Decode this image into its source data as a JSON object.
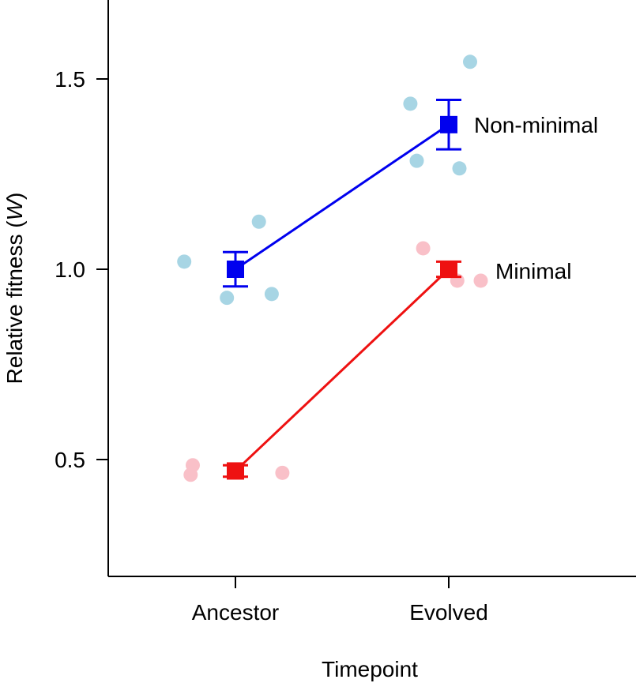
{
  "chart_data": {
    "type": "scatter",
    "xlabel": "Timepoint",
    "ylabel_prefix": "Relative fitness (",
    "ylabel_var": "W",
    "ylabel_suffix": ")",
    "categories": [
      "Ancestor",
      "Evolved"
    ],
    "ylim": [
      0.2,
      1.7
    ],
    "yticks": [
      0.5,
      1.0,
      1.5
    ],
    "ytick_labels": [
      "0.5",
      "1.0",
      "1.5"
    ],
    "grid": false,
    "series": [
      {
        "name": "Non-minimal",
        "color": "#0000ee",
        "point_color": "#a7d5e4",
        "mean": [
          1.0,
          1.38
        ],
        "error": [
          0.045,
          0.065
        ],
        "points": [
          {
            "cat": 0,
            "offset": -0.24,
            "y": 1.02
          },
          {
            "cat": 0,
            "offset": -0.04,
            "y": 0.925
          },
          {
            "cat": 0,
            "offset": 0.11,
            "y": 1.125
          },
          {
            "cat": 0,
            "offset": 0.17,
            "y": 0.935
          },
          {
            "cat": 1,
            "offset": -0.18,
            "y": 1.435
          },
          {
            "cat": 1,
            "offset": -0.15,
            "y": 1.285
          },
          {
            "cat": 1,
            "offset": 0.05,
            "y": 1.265
          },
          {
            "cat": 1,
            "offset": 0.1,
            "y": 1.545
          }
        ]
      },
      {
        "name": "Minimal",
        "color": "#ee1111",
        "point_color": "#f9c0c8",
        "mean": [
          0.47,
          1.0
        ],
        "error": [
          0.015,
          0.02
        ],
        "points": [
          {
            "cat": 0,
            "offset": -0.2,
            "y": 0.485
          },
          {
            "cat": 0,
            "offset": -0.21,
            "y": 0.46
          },
          {
            "cat": 0,
            "offset": 0.22,
            "y": 0.465
          },
          {
            "cat": 1,
            "offset": -0.12,
            "y": 1.055
          },
          {
            "cat": 1,
            "offset": 0.04,
            "y": 0.97
          },
          {
            "cat": 1,
            "offset": 0.15,
            "y": 0.97
          }
        ]
      }
    ]
  }
}
